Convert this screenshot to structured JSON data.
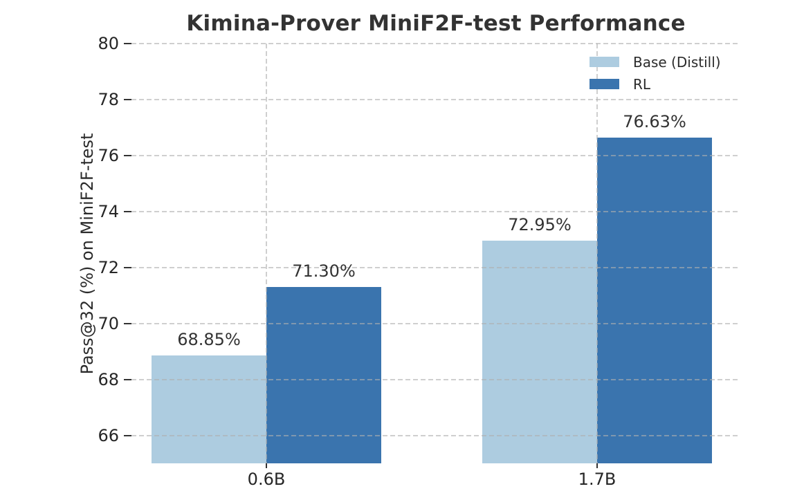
{
  "chart_data": {
    "type": "bar",
    "title": "Kimina-Prover MiniF2F-test Performance",
    "ylabel": "Pass@32 (%) on MiniF2F-test",
    "xlabel": "",
    "categories": [
      "0.6B",
      "1.7B"
    ],
    "series": [
      {
        "name": "Base (Distill)",
        "color": "#adcce0",
        "values": [
          68.85,
          72.95
        ],
        "labels": [
          "68.85%",
          "72.95%"
        ]
      },
      {
        "name": "RL",
        "color": "#3a74ae",
        "values": [
          71.3,
          76.63
        ],
        "labels": [
          "71.30%",
          "76.63%"
        ]
      }
    ],
    "ylim": [
      65,
      80
    ],
    "yticks": [
      66,
      68,
      70,
      72,
      74,
      76,
      78,
      80
    ],
    "grid": "dashed-both-axes",
    "legend_position": "upper-right",
    "colors": {
      "background": "#ffffff",
      "gridline": "#bcbcbc",
      "tick_text": "#262626",
      "title_text": "#333333"
    }
  }
}
